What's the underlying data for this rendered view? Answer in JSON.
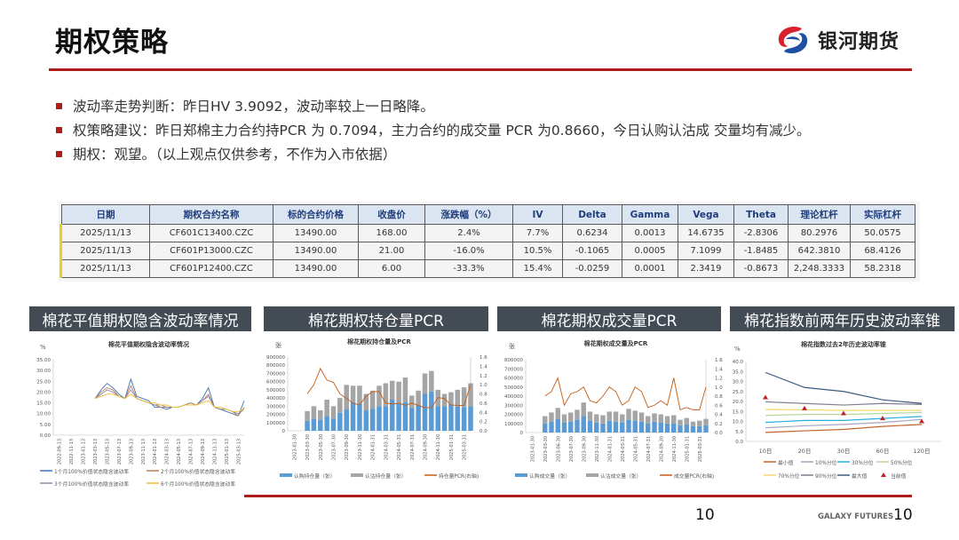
{
  "header": {
    "title": "期权策略",
    "logo_text": "银河期货"
  },
  "bullets": [
    "波动率走势判断：昨日HV 3.9092，波动率较上一日略降。",
    "权策略建议：昨日郑棉主力合约持PCR 为 0.7094，主力合约的成交量 PCR 为0.8660，今日认购认沽成 交量均有减少。",
    "期权：观望。（以上观点仅供参考，不作为入市依据）"
  ],
  "table": {
    "headers": [
      "日期",
      "期权合约名称",
      "标的合约价格",
      "收盘价",
      "涨跌幅（%）",
      "IV",
      "Delta",
      "Gamma",
      "Vega",
      "Theta",
      "理论杠杆",
      "实际杠杆"
    ],
    "rows": [
      [
        "2025/11/13",
        "CF601C13400.CZC",
        "13490.00",
        "168.00",
        "2.4%",
        "7.7%",
        "0.6234",
        "0.0013",
        "14.6735",
        "-2.8306",
        "80.2976",
        "50.0575"
      ],
      [
        "2025/11/13",
        "CF601P13000.CZC",
        "13490.00",
        "21.00",
        "-16.0%",
        "10.5%",
        "-0.1065",
        "0.0005",
        "7.1099",
        "-1.8485",
        "642.3810",
        "68.4126"
      ],
      [
        "2025/11/13",
        "CF601P12400.CZC",
        "13490.00",
        "6.00",
        "-33.3%",
        "15.4%",
        "-0.0259",
        "0.0001",
        "2.3419",
        "-0.8673",
        "2,248.3333",
        "58.2318"
      ]
    ],
    "highlight_color": "#e6d21e"
  },
  "sections": [
    {
      "title": "棉花平值期权隐含波动率情况"
    },
    {
      "title": "棉花期权持仓量PCR"
    },
    {
      "title": "棉花期权成交量PCR"
    },
    {
      "title": "棉花指数前两年历史波动率锥"
    }
  ],
  "chart_data": [
    {
      "type": "line",
      "title": "棉花平值期权隐含波动率情况",
      "ylabel": "%",
      "ylim": [
        0,
        35
      ],
      "yticks": [
        "0.00",
        "5.00",
        "10.00",
        "15.00",
        "20.00",
        "25.00",
        "30.00",
        "35.00"
      ],
      "xlim": [
        "2022-09",
        "2025-05"
      ],
      "xticks": [
        "2022-09-13",
        "2022-11-13",
        "2023-01-13",
        "2023-03-13",
        "2023-05-13",
        "2023-07-13",
        "2023-09-13",
        "2023-11-13",
        "2024-01-13",
        "2024-03-13",
        "2024-05-13",
        "2024-07-13",
        "2024-09-13",
        "2024-11-13",
        "2025-01-13",
        "2025-03-13"
      ],
      "x": [
        "2023-04",
        "2023-05",
        "2023-06",
        "2023-07",
        "2023-08",
        "2023-09",
        "2023-10",
        "2023-11",
        "2023-12",
        "2024-01",
        "2024-02",
        "2024-03",
        "2024-04",
        "2024-05",
        "2024-06",
        "2024-07",
        "2024-08",
        "2024-09",
        "2024-10",
        "2024-11",
        "2024-12",
        "2025-01",
        "2025-02",
        "2025-03",
        "2025-04",
        "2025-05"
      ],
      "series": [
        {
          "name": "1个月100%价值状态隐含波动率",
          "color": "#3b74b8",
          "values": [
            17,
            21,
            24,
            22,
            19,
            17,
            26,
            18,
            17,
            16,
            13,
            13,
            12,
            13,
            13,
            14,
            15,
            14,
            17,
            22,
            13,
            12,
            11,
            10,
            9,
            16
          ]
        },
        {
          "name": "2个月100%价值状态隐含波动率",
          "color": "#c07a5a",
          "values": [
            17,
            20,
            22,
            21,
            18,
            17,
            23,
            17,
            16,
            15,
            14,
            13,
            13,
            13,
            13,
            14,
            15,
            14,
            16,
            19,
            13,
            12,
            12,
            11,
            9,
            13
          ]
        },
        {
          "name": "3个月100%价值状态隐含波动率",
          "color": "#8a8aa8",
          "values": [
            17,
            19,
            21,
            20,
            18,
            17,
            21,
            17,
            16,
            15,
            14,
            14,
            13,
            13,
            13,
            14,
            14,
            14,
            16,
            18,
            13,
            12,
            12,
            11,
            10,
            12
          ]
        },
        {
          "name": "6个月100%价值状态隐含波动率",
          "color": "#f2c12e",
          "values": [
            17,
            18,
            19,
            19,
            18,
            17,
            19,
            17,
            16,
            15,
            15,
            14,
            14,
            13,
            13,
            14,
            14,
            14,
            15,
            16,
            13,
            13,
            12,
            11,
            11,
            12
          ]
        }
      ]
    },
    {
      "type": "bar",
      "title": "棉花期权持仓量及PCR",
      "ylabel": "张",
      "ylim": [
        0,
        900000
      ],
      "y2lim": [
        0,
        1.6
      ],
      "yticks": [
        "0",
        "100000",
        "200000",
        "300000",
        "400000",
        "500000",
        "600000",
        "700000",
        "800000",
        "900000"
      ],
      "y2ticks": [
        "0.0",
        "0.2",
        "0.4",
        "0.6",
        "0.8",
        "1.0",
        "1.2",
        "1.4",
        "1.6"
      ],
      "xlim": [
        "2023-01",
        "2025-05"
      ],
      "xticks": [
        "2023-01-30",
        "2023-03-30",
        "2023-05-30",
        "2023-07-30",
        "2023-09-30",
        "2023-11-30",
        "2024-01-31",
        "2024-03-31",
        "2024-05-31",
        "2024-07-31",
        "2024-09-30",
        "2024-11-30",
        "2025-01-31",
        "2025-03-31"
      ],
      "x": [
        "2023-04",
        "2023-05",
        "2023-06",
        "2023-07",
        "2023-08",
        "2023-09",
        "2023-10",
        "2023-11",
        "2023-12",
        "2024-01",
        "2024-02",
        "2024-03",
        "2024-04",
        "2024-05",
        "2024-06",
        "2024-07",
        "2024-08",
        "2024-09",
        "2024-10",
        "2024-11",
        "2024-12",
        "2025-01",
        "2025-02",
        "2025-03",
        "2025-04",
        "2025-05"
      ],
      "series": [
        {
          "name": "认购持仓量（张）",
          "color": "#5b9bd5",
          "stack": true,
          "values": [
            120000,
            150000,
            130000,
            180000,
            150000,
            220000,
            260000,
            350000,
            330000,
            250000,
            270000,
            300000,
            300000,
            380000,
            330000,
            350000,
            280000,
            310000,
            450000,
            480000,
            300000,
            300000,
            320000,
            300000,
            290000,
            300000
          ]
        },
        {
          "name": "认沽持仓量（张）",
          "color": "#a5a5a5",
          "stack": true,
          "values": [
            120000,
            150000,
            120000,
            200000,
            150000,
            180000,
            300000,
            200000,
            220000,
            200000,
            220000,
            250000,
            280000,
            230000,
            270000,
            300000,
            150000,
            180000,
            250000,
            250000,
            200000,
            150000,
            150000,
            200000,
            240000,
            280000
          ]
        },
        {
          "name": "持仓量PCR(右轴)",
          "color": "#c55a11",
          "axis": "right",
          "values": [
            0.8,
            1.0,
            1.35,
            1.1,
            1.05,
            0.8,
            0.7,
            0.6,
            0.56,
            0.75,
            0.85,
            0.85,
            0.6,
            0.58,
            0.6,
            0.55,
            0.6,
            0.55,
            0.5,
            0.5,
            0.72,
            0.7,
            0.56,
            0.55,
            0.55,
            1.0
          ]
        }
      ]
    },
    {
      "type": "bar",
      "title": "棉花期权成交量及PCR",
      "ylabel": "张",
      "ylim": [
        0,
        800000
      ],
      "y2lim": [
        0,
        1.6
      ],
      "yticks": [
        "0",
        "100000",
        "200000",
        "300000",
        "400000",
        "500000",
        "600000",
        "700000",
        "800000"
      ],
      "y2ticks": [
        "0.0",
        "0.2",
        "0.4",
        "0.6",
        "0.8",
        "1.0",
        "1.2",
        "1.4",
        "1.6"
      ],
      "xlim": [
        "2023-01",
        "2025-05"
      ],
      "xticks": [
        "2023-01-30",
        "2023-03-30",
        "2023-06-30",
        "2023-07-30",
        "2023-09-30",
        "2023-11-30",
        "2024-01-31",
        "2024-03-31",
        "2024-05-31",
        "2024-07-31",
        "2024-09-30",
        "2024-11-30",
        "2025-01-31",
        "2025-03-31"
      ],
      "x": [
        "2023-04",
        "2023-05",
        "2023-06",
        "2023-07",
        "2023-08",
        "2023-09",
        "2023-10",
        "2023-11",
        "2023-12",
        "2024-01",
        "2024-02",
        "2024-03",
        "2024-04",
        "2024-05",
        "2024-06",
        "2024-07",
        "2024-08",
        "2024-09",
        "2024-10",
        "2024-11",
        "2024-12",
        "2025-01",
        "2025-02",
        "2025-03",
        "2025-04",
        "2025-05"
      ],
      "series": [
        {
          "name": "认购成交量（张）",
          "color": "#5b9bd5",
          "stack": true,
          "values": [
            100000,
            120000,
            150000,
            110000,
            120000,
            140000,
            180000,
            130000,
            110000,
            100000,
            130000,
            120000,
            110000,
            140000,
            130000,
            120000,
            100000,
            120000,
            110000,
            100000,
            100000,
            80000,
            90000,
            70000,
            70000,
            80000
          ]
        },
        {
          "name": "认沽成交量（张）",
          "color": "#a5a5a5",
          "stack": true,
          "values": [
            80000,
            100000,
            120000,
            90000,
            100000,
            110000,
            150000,
            100000,
            90000,
            90000,
            100000,
            110000,
            90000,
            120000,
            110000,
            100000,
            80000,
            90000,
            90000,
            80000,
            90000,
            60000,
            70000,
            50000,
            60000,
            70000
          ]
        },
        {
          "name": "成交量PCR(右轴)",
          "color": "#c55a11",
          "axis": "right",
          "values": [
            0.8,
            0.9,
            1.2,
            0.6,
            0.85,
            0.9,
            1.0,
            0.7,
            0.65,
            0.8,
            1.0,
            0.9,
            0.6,
            0.7,
            1.0,
            0.9,
            0.55,
            0.6,
            0.7,
            0.6,
            1.2,
            0.5,
            0.55,
            0.5,
            0.5,
            1.0
          ]
        }
      ]
    },
    {
      "type": "line",
      "title": "棉花指数过去2年历史波动率锥",
      "ylabel": "%",
      "ylim": [
        0,
        40
      ],
      "yticks": [
        "0.0",
        "5.0",
        "10.0",
        "15.0",
        "20.0",
        "25.0",
        "30.0",
        "35.0",
        "40.0"
      ],
      "categories": [
        "10日",
        "20日",
        "30日",
        "60日",
        "120日"
      ],
      "series": [
        {
          "name": "最小值",
          "color": "#c0652a",
          "values": [
            4.5,
            5.3,
            6.0,
            7.5,
            8.5
          ]
        },
        {
          "name": "10%分位",
          "color": "#a5a5c0",
          "values": [
            6.8,
            7.8,
            8.5,
            9.5,
            11.0
          ]
        },
        {
          "name": "30%分位",
          "color": "#2ab0e0",
          "values": [
            9.5,
            10.5,
            10.5,
            11.5,
            12.5
          ]
        },
        {
          "name": "50%分位",
          "color": "#b5d89a",
          "values": [
            13.0,
            13.5,
            13.5,
            14.0,
            14.5
          ]
        },
        {
          "name": "70%分位",
          "color": "#f5d76e",
          "values": [
            16.0,
            15.8,
            15.5,
            15.5,
            15.5
          ]
        },
        {
          "name": "90%分位",
          "color": "#7f7f8f",
          "values": [
            19.8,
            19.0,
            18.2,
            19.0,
            18.5
          ]
        },
        {
          "name": "最大值",
          "color": "#3d5a80",
          "values": [
            34.5,
            27.0,
            25.0,
            20.8,
            19.0
          ]
        },
        {
          "name": "当前值",
          "color": "#c0202a",
          "marker": "triangle",
          "values": [
            22.0,
            16.5,
            14.0,
            11.5,
            10.0
          ]
        }
      ]
    }
  ],
  "footer": {
    "page": "10",
    "brand": "GALAXY FUTURES",
    "page_right": "10"
  },
  "colors": {
    "accent": "#b01c1c",
    "section_bg": "#434b55",
    "table_header_bg": "#dbe5f1"
  }
}
